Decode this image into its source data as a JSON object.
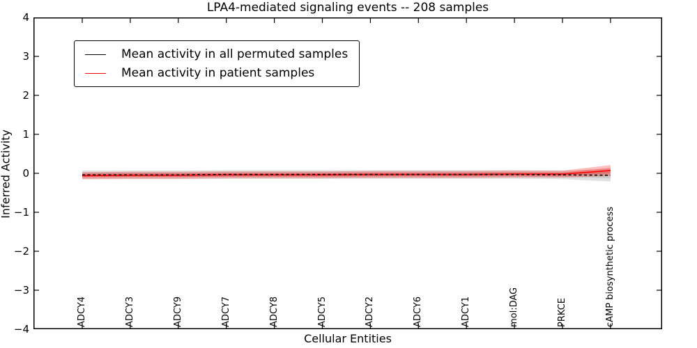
{
  "chart_data": {
    "type": "line",
    "title": "LPA4-mediated signaling events -- 208 samples",
    "xlabel": "Cellular Entities",
    "ylabel": "Inferred Activity",
    "ylim": [
      -4,
      4
    ],
    "yticks": [
      4,
      3,
      2,
      1,
      0,
      -1,
      -2,
      -3,
      -4
    ],
    "ytick_labels": [
      "4",
      "3",
      "2",
      "1",
      "0",
      "−1",
      "−2",
      "−3",
      "−4"
    ],
    "grid": false,
    "legend": {
      "position": "upper left"
    },
    "categories": [
      "ADCY4",
      "ADCY3",
      "ADCY9",
      "ADCY7",
      "ADCY8",
      "ADCY5",
      "ADCY2",
      "ADCY6",
      "ADCY1",
      "mol:DAG",
      "PRKCE",
      "cAMP biosynthetic process"
    ],
    "series": [
      {
        "name": "Mean activity in all permuted samples",
        "color": "#000000",
        "line_style": "dashed",
        "band_color": "#999999",
        "band_opacity": 0.3,
        "values": [
          -0.04,
          -0.04,
          -0.04,
          -0.03,
          -0.03,
          -0.03,
          -0.03,
          -0.03,
          -0.03,
          -0.03,
          -0.04,
          -0.05
        ],
        "band_halfwidth": [
          0.11,
          0.11,
          0.11,
          0.11,
          0.11,
          0.11,
          0.11,
          0.11,
          0.11,
          0.11,
          0.11,
          0.16
        ]
      },
      {
        "name": "Mean activity in patient samples",
        "color": "#ff0000",
        "line_style": "solid",
        "band_color": "#ff0000",
        "band_opacity": 0.25,
        "values": [
          -0.06,
          -0.05,
          -0.05,
          -0.04,
          -0.04,
          -0.04,
          -0.03,
          -0.03,
          -0.03,
          -0.02,
          -0.02,
          0.07
        ],
        "band_halfwidth": [
          0.09,
          0.09,
          0.09,
          0.09,
          0.09,
          0.09,
          0.09,
          0.09,
          0.09,
          0.09,
          0.09,
          0.14
        ]
      }
    ]
  }
}
